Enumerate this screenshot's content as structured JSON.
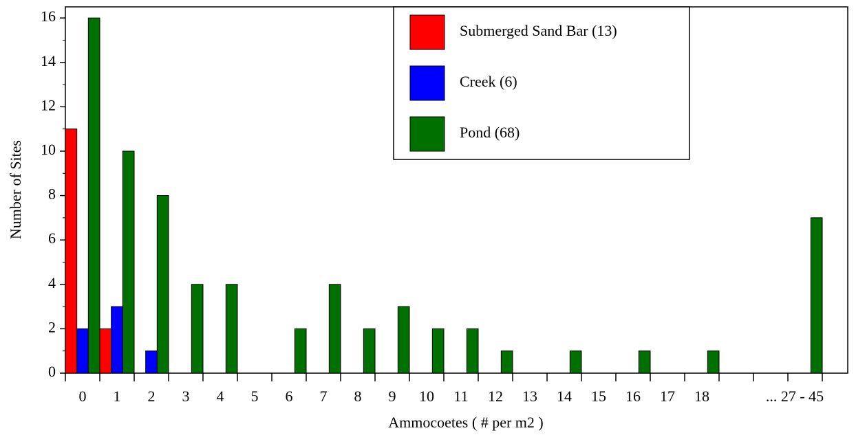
{
  "chart_data": {
    "type": "bar",
    "x_label": "Ammocoetes ( # per m2 )",
    "y_label": "Number of Sites",
    "categories": [
      "0",
      "1",
      "2",
      "3",
      "4",
      "5",
      "6",
      "7",
      "8",
      "9",
      "10",
      "11",
      "12",
      "13",
      "14",
      "15",
      "16",
      "17",
      "18",
      null,
      null,
      "... 27 - 45"
    ],
    "series": [
      {
        "name": "Submerged Sand Bar (13)",
        "color": "#ff0000",
        "values": [
          11,
          2,
          0,
          0,
          0,
          0,
          0,
          0,
          0,
          0,
          0,
          0,
          0,
          0,
          0,
          0,
          0,
          0,
          0,
          0,
          0,
          0
        ]
      },
      {
        "name": "Creek (6)",
        "color": "#0000ff",
        "values": [
          2,
          3,
          1,
          0,
          0,
          0,
          0,
          0,
          0,
          0,
          0,
          0,
          0,
          0,
          0,
          0,
          0,
          0,
          0,
          0,
          0,
          0
        ]
      },
      {
        "name": "Pond (68)",
        "color": "#007000",
        "values": [
          16,
          10,
          8,
          4,
          4,
          0,
          2,
          4,
          2,
          3,
          2,
          2,
          1,
          0,
          1,
          0,
          1,
          0,
          1,
          0,
          0,
          7
        ]
      }
    ],
    "ylim": [
      0,
      16.5
    ],
    "yticks": [
      0,
      2,
      4,
      6,
      8,
      10,
      12,
      14,
      16
    ],
    "legend": "top-right"
  }
}
